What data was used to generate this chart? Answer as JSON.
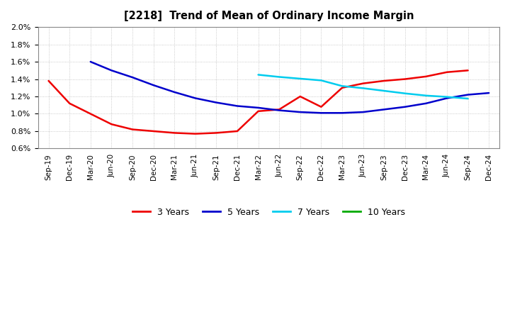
{
  "title": "[2218]  Trend of Mean of Ordinary Income Margin",
  "x_labels": [
    "Sep-19",
    "Dec-19",
    "Mar-20",
    "Jun-20",
    "Sep-20",
    "Dec-20",
    "Mar-21",
    "Jun-21",
    "Sep-21",
    "Dec-21",
    "Mar-22",
    "Jun-22",
    "Sep-22",
    "Dec-22",
    "Mar-23",
    "Jun-23",
    "Sep-23",
    "Dec-23",
    "Mar-24",
    "Jun-24",
    "Sep-24",
    "Dec-24"
  ],
  "y_min": 0.006,
  "y_max": 0.02,
  "y_ticks": [
    0.006,
    0.008,
    0.01,
    0.012,
    0.014,
    0.016,
    0.018,
    0.02
  ],
  "series_3y": {
    "color": "#EE0000",
    "linewidth": 1.8,
    "data_x": [
      0,
      1,
      2,
      3,
      4,
      5,
      6,
      7,
      8,
      9,
      10,
      11,
      12,
      13,
      14,
      15,
      16,
      17,
      18,
      19,
      20
    ],
    "data_y": [
      0.0138,
      0.0112,
      0.01,
      0.0088,
      0.0082,
      0.008,
      0.0078,
      0.0077,
      0.0078,
      0.008,
      0.0103,
      0.0105,
      0.012,
      0.0108,
      0.013,
      0.0135,
      0.0138,
      0.014,
      0.0143,
      0.0148,
      0.015
    ]
  },
  "series_5y": {
    "color": "#0000CC",
    "linewidth": 1.8,
    "data_x": [
      2,
      3,
      4,
      5,
      6,
      7,
      8,
      9,
      10,
      11,
      12,
      13,
      14,
      15,
      16,
      17,
      18,
      19,
      20,
      21
    ],
    "data_y": [
      0.016,
      0.015,
      0.0142,
      0.0133,
      0.0125,
      0.0118,
      0.0113,
      0.0109,
      0.0107,
      0.0104,
      0.0102,
      0.0101,
      0.0101,
      0.0102,
      0.0105,
      0.0108,
      0.0112,
      0.0118,
      0.0122,
      0.0124
    ]
  },
  "series_7y": {
    "color": "#00CCEE",
    "linewidth": 1.8,
    "data_x": [
      10,
      11,
      12,
      13,
      14,
      15,
      16,
      17,
      18,
      19,
      20
    ],
    "data_y": [
      0.0145,
      0.01425,
      0.01405,
      0.01385,
      0.0132,
      0.01295,
      0.01265,
      0.01235,
      0.0121,
      0.01195,
      0.01175
    ]
  },
  "series_10y": {
    "color": "#00AA00",
    "linewidth": 1.8,
    "data_x": [],
    "data_y": []
  },
  "legend_labels": [
    "3 Years",
    "5 Years",
    "7 Years",
    "10 Years"
  ],
  "legend_colors": [
    "#EE0000",
    "#0000CC",
    "#00CCEE",
    "#00AA00"
  ]
}
